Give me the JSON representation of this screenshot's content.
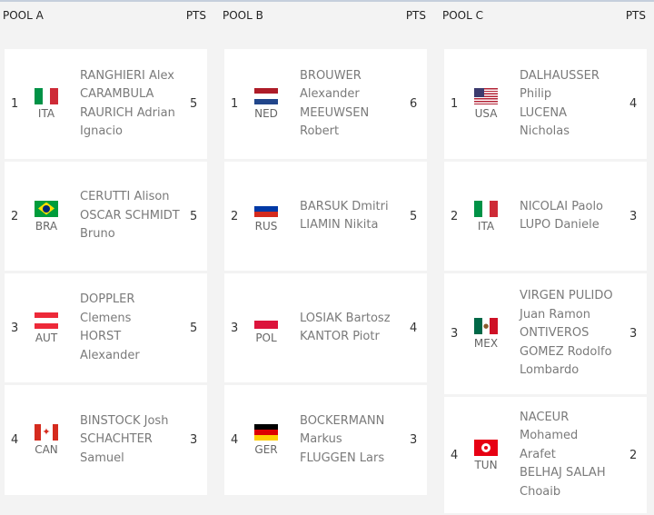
{
  "pools": [
    {
      "title": "POOL A",
      "pts_label": "PTS",
      "teams": [
        {
          "rank": "1",
          "country": "ITA",
          "flag": "italy-flag",
          "names": [
            "RANGHIERI Alex",
            "CARAMBULA",
            "RAURICH Adrian",
            "Ignacio"
          ],
          "pts": "5"
        },
        {
          "rank": "2",
          "country": "BRA",
          "flag": "brazil-flag",
          "names": [
            "CERUTTI Alison",
            "OSCAR SCHMIDT",
            "Bruno"
          ],
          "pts": "5"
        },
        {
          "rank": "3",
          "country": "AUT",
          "flag": "austria-flag",
          "names": [
            "DOPPLER",
            "Clemens",
            "HORST",
            "Alexander"
          ],
          "pts": "5"
        },
        {
          "rank": "4",
          "country": "CAN",
          "flag": "canada-flag",
          "names": [
            "BINSTOCK Josh",
            "SCHACHTER",
            "Samuel"
          ],
          "pts": "3"
        }
      ]
    },
    {
      "title": "POOL B",
      "pts_label": "PTS",
      "teams": [
        {
          "rank": "1",
          "country": "NED",
          "flag": "netherlands-flag",
          "names": [
            "BROUWER",
            "Alexander",
            "MEEUWSEN",
            "Robert"
          ],
          "pts": "6"
        },
        {
          "rank": "2",
          "country": "RUS",
          "flag": "russia-flag",
          "names": [
            "BARSUK Dmitri",
            "LIAMIN Nikita"
          ],
          "pts": "5"
        },
        {
          "rank": "3",
          "country": "POL",
          "flag": "poland-flag",
          "names": [
            "LOSIAK Bartosz",
            "KANTOR Piotr"
          ],
          "pts": "4"
        },
        {
          "rank": "4",
          "country": "GER",
          "flag": "germany-flag",
          "names": [
            "BOCKERMANN",
            "Markus",
            "FLUGGEN Lars"
          ],
          "pts": "3"
        }
      ]
    },
    {
      "title": "POOL C",
      "pts_label": "PTS",
      "teams": [
        {
          "rank": "1",
          "country": "USA",
          "flag": "usa-flag",
          "names": [
            "DALHAUSSER",
            "Philip",
            "LUCENA",
            "Nicholas"
          ],
          "pts": "4"
        },
        {
          "rank": "2",
          "country": "ITA",
          "flag": "italy-flag",
          "names": [
            "NICOLAI Paolo",
            "LUPO Daniele"
          ],
          "pts": "3"
        },
        {
          "rank": "3",
          "country": "MEX",
          "flag": "mexico-flag",
          "names": [
            "VIRGEN PULIDO",
            "Juan Ramon",
            "ONTIVEROS",
            "GOMEZ Rodolfo",
            "Lombardo"
          ],
          "pts": "3"
        },
        {
          "rank": "4",
          "country": "TUN",
          "flag": "tunisia-flag",
          "names": [
            "NACEUR",
            "Mohamed",
            "Arafet",
            "BELHAJ SALAH",
            "Choaib"
          ],
          "pts": "2"
        }
      ]
    }
  ]
}
